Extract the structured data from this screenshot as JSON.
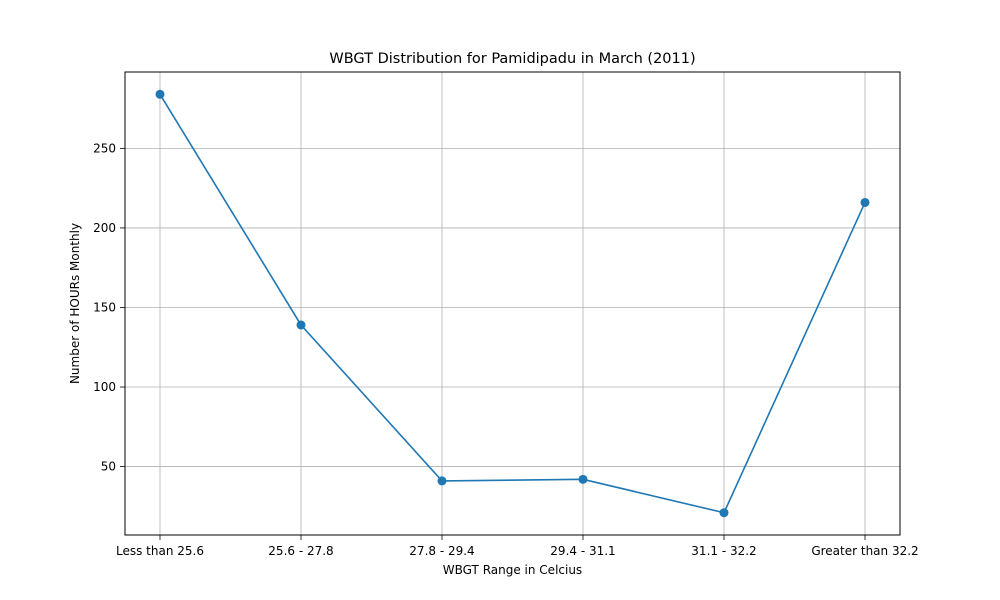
{
  "chart_data": {
    "type": "line",
    "title": "WBGT Distribution for Pamidipadu in March (2011)",
    "xlabel": "WBGT Range in Celcius",
    "ylabel": "Number of HOURs Monthly",
    "categories": [
      "Less than 25.6",
      "25.6 - 27.8",
      "27.8 - 29.4",
      "29.4 - 31.1",
      "31.1 - 32.2",
      "Greater than 32.2"
    ],
    "series": [
      {
        "values": [
          284,
          139,
          41,
          42,
          21,
          216
        ]
      }
    ],
    "ylim": [
      7,
      298
    ],
    "yticks": [
      50,
      100,
      150,
      200,
      250
    ],
    "grid": true,
    "line_color": "#1f77b4",
    "marker": "circle"
  }
}
